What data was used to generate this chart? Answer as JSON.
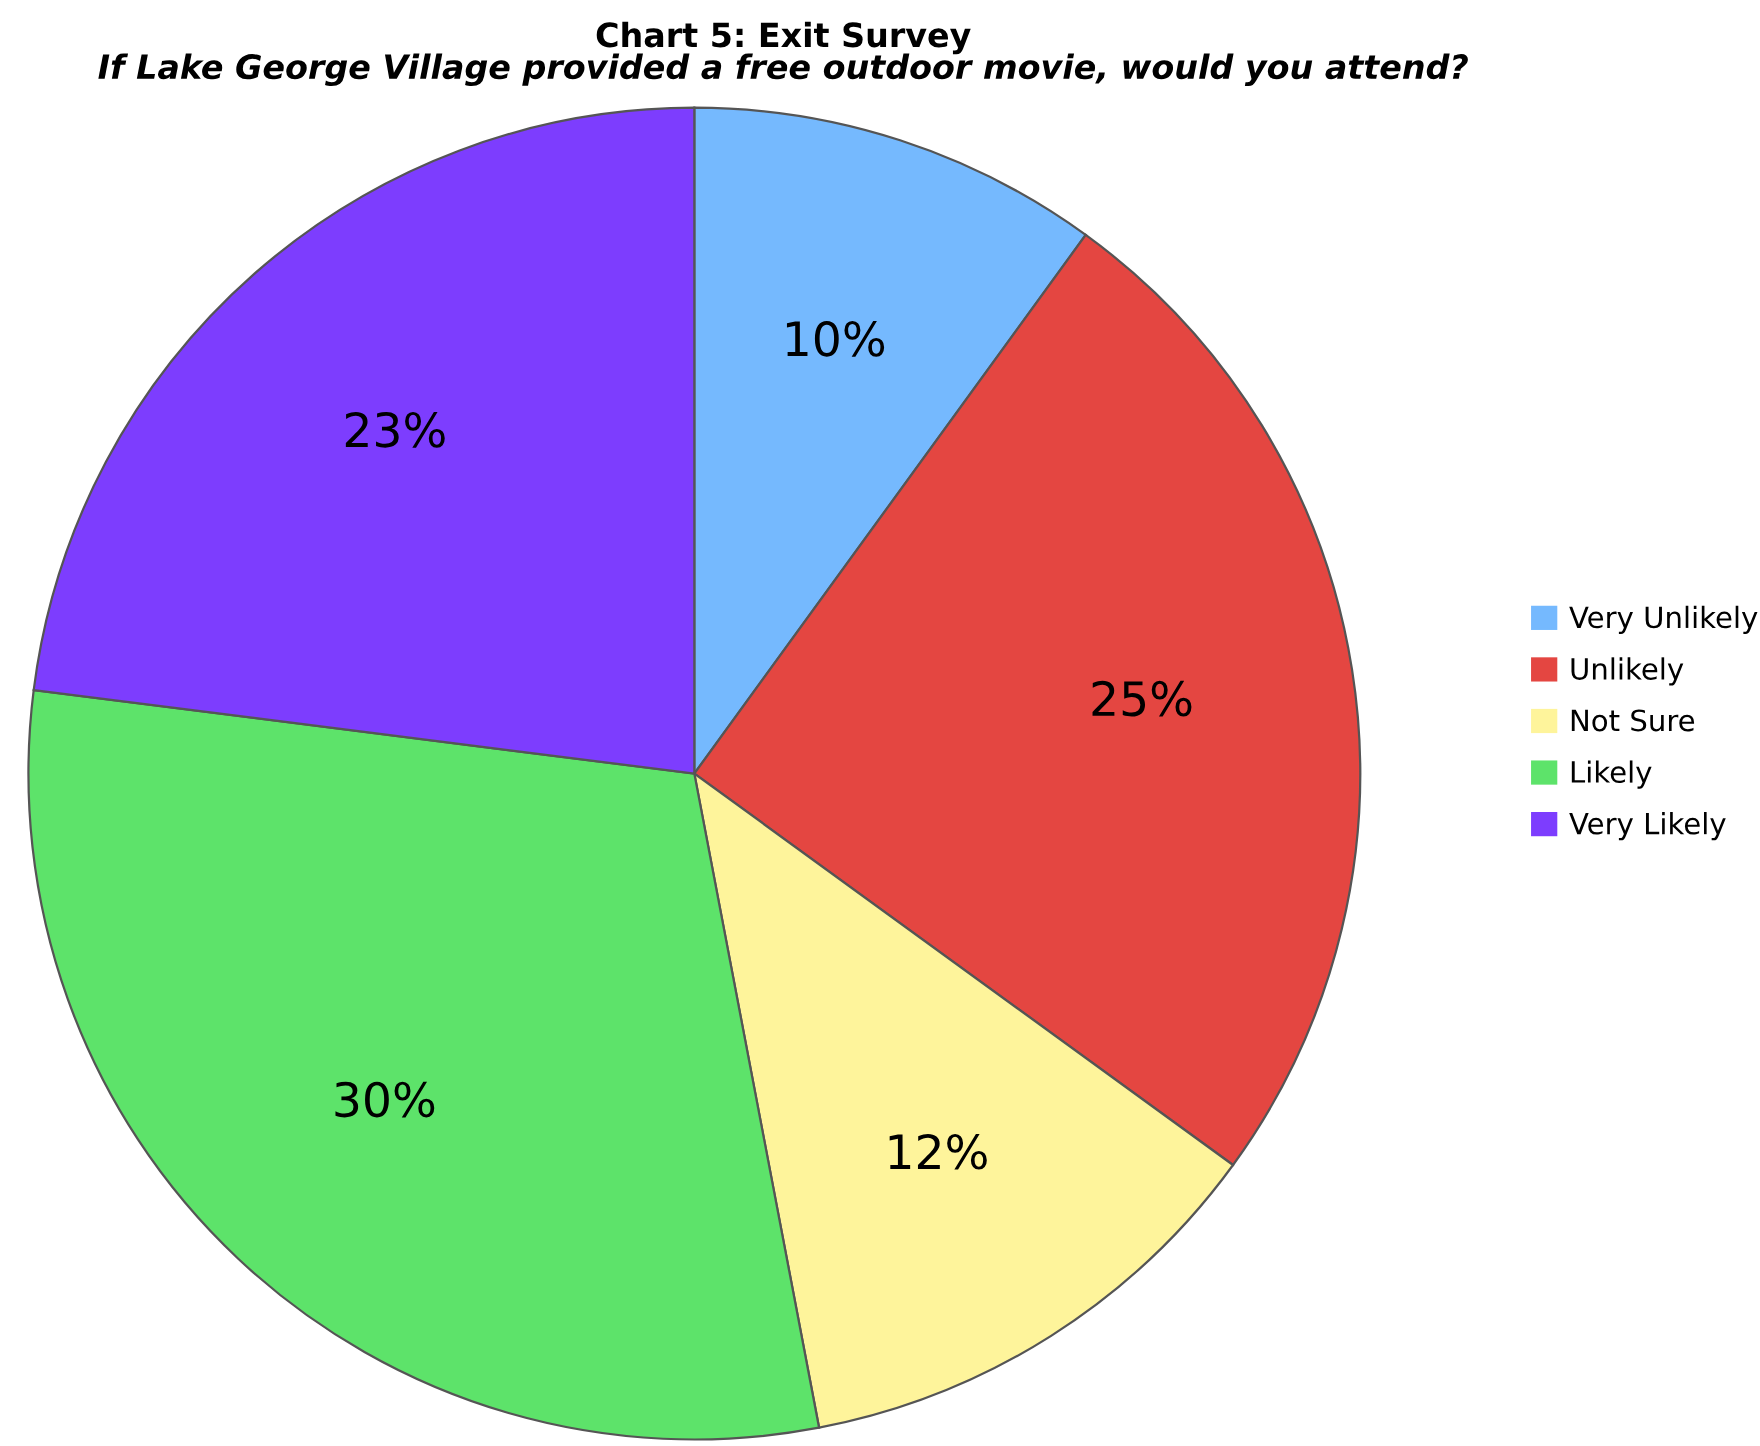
{
  "chart_data": {
    "type": "pie",
    "title": "Chart 5: Exit Survey",
    "subtitle": "If Lake George Village provided a free outdoor movie, would you attend?",
    "categories": [
      "Very Unlikely",
      "Unlikely",
      "Not Sure",
      "Likely",
      "Very Likely"
    ],
    "values": [
      10,
      25,
      12,
      30,
      23
    ],
    "colors": [
      "#75b9fe",
      "#e44641",
      "#fef49b",
      "#5de36a",
      "#7d3dfe"
    ],
    "value_labels": [
      "10%",
      "25%",
      "12%",
      "30%",
      "23%"
    ],
    "legend": "right"
  }
}
